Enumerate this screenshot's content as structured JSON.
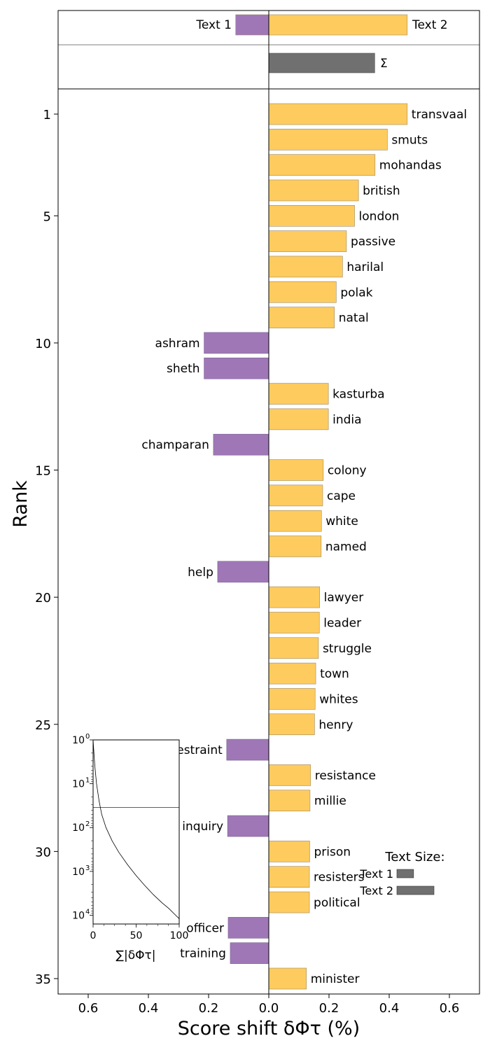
{
  "chart_data": [
    {
      "type": "bar",
      "orientation": "horizontal",
      "xlabel": "Score shift δΦτ (%)",
      "ylabel": "Rank",
      "xlim": [
        -0.7,
        0.7
      ],
      "xticks": [
        -0.6,
        -0.4,
        -0.2,
        0.0,
        0.2,
        0.4,
        0.6
      ],
      "xtick_labels": [
        "0.6",
        "0.4",
        "0.2",
        "0.0",
        "0.2",
        "0.4",
        "0.6"
      ],
      "yticks": [
        1,
        5,
        10,
        15,
        20,
        25,
        30,
        35
      ],
      "ytick_labels": [
        "1",
        "5",
        "10",
        "15",
        "20",
        "25",
        "30",
        "35"
      ],
      "header": {
        "text1_label": "Text 1",
        "text2_label": "Text 2",
        "text1_value": -0.11,
        "text2_value": 0.46,
        "sum_label": "Σ",
        "sum_value": 0.352
      },
      "colors": {
        "text1": "#9f77b7",
        "text2": "#fecb5e",
        "sum": "#707070",
        "bar_edge": "#9b8a6a"
      },
      "bars": [
        {
          "rank": 1,
          "word": "transvaal",
          "value": 0.46
        },
        {
          "rank": 2,
          "word": "smuts",
          "value": 0.394
        },
        {
          "rank": 3,
          "word": "mohandas",
          "value": 0.353
        },
        {
          "rank": 4,
          "word": "british",
          "value": 0.298
        },
        {
          "rank": 5,
          "word": "london",
          "value": 0.285
        },
        {
          "rank": 6,
          "word": "passive",
          "value": 0.258
        },
        {
          "rank": 7,
          "word": "harilal",
          "value": 0.245
        },
        {
          "rank": 8,
          "word": "polak",
          "value": 0.224
        },
        {
          "rank": 9,
          "word": "natal",
          "value": 0.218
        },
        {
          "rank": 10,
          "word": "ashram",
          "value": -0.215
        },
        {
          "rank": 11,
          "word": "sheth",
          "value": -0.215
        },
        {
          "rank": 12,
          "word": "kasturba",
          "value": 0.198
        },
        {
          "rank": 13,
          "word": "india",
          "value": 0.198
        },
        {
          "rank": 14,
          "word": "champaran",
          "value": -0.184
        },
        {
          "rank": 15,
          "word": "colony",
          "value": 0.181
        },
        {
          "rank": 16,
          "word": "cape",
          "value": 0.179
        },
        {
          "rank": 17,
          "word": "white",
          "value": 0.175
        },
        {
          "rank": 18,
          "word": "named",
          "value": 0.174
        },
        {
          "rank": 19,
          "word": "help",
          "value": -0.17
        },
        {
          "rank": 20,
          "word": "lawyer",
          "value": 0.169
        },
        {
          "rank": 21,
          "word": "leader",
          "value": 0.168
        },
        {
          "rank": 22,
          "word": "struggle",
          "value": 0.165
        },
        {
          "rank": 23,
          "word": "town",
          "value": 0.156
        },
        {
          "rank": 24,
          "word": "whites",
          "value": 0.154
        },
        {
          "rank": 25,
          "word": "henry",
          "value": 0.152
        },
        {
          "rank": 26,
          "word": "restraint",
          "value": -0.14
        },
        {
          "rank": 27,
          "word": "resistance",
          "value": 0.139
        },
        {
          "rank": 28,
          "word": "millie",
          "value": 0.137
        },
        {
          "rank": 29,
          "word": "inquiry",
          "value": -0.137
        },
        {
          "rank": 30,
          "word": "prison",
          "value": 0.136
        },
        {
          "rank": 31,
          "word": "resisters",
          "value": 0.135
        },
        {
          "rank": 32,
          "word": "political",
          "value": 0.135
        },
        {
          "rank": 33,
          "word": "officer",
          "value": -0.135
        },
        {
          "rank": 34,
          "word": "training",
          "value": -0.128
        },
        {
          "rank": 35,
          "word": "minister",
          "value": 0.125
        }
      ]
    },
    {
      "type": "line",
      "role": "inset",
      "xlabel": "∑|δΦτ|",
      "xlim": [
        0,
        100
      ],
      "xticks": [
        0,
        50,
        100
      ],
      "xtick_labels": [
        "0",
        "50",
        "100"
      ],
      "yscale": "log",
      "yaxis_inverted": true,
      "yticks": [
        0,
        1,
        2,
        3,
        4
      ],
      "ytick_labels": [
        "10",
        "10",
        "10",
        "10",
        "10"
      ],
      "ytick_exponents": [
        "0",
        "1",
        "2",
        "3",
        "4"
      ],
      "reference_line_rank": 35,
      "points": [
        [
          0,
          1
        ],
        [
          1,
          2
        ],
        [
          2,
          4
        ],
        [
          4,
          10
        ],
        [
          7,
          25
        ],
        [
          10,
          50
        ],
        [
          15,
          100
        ],
        [
          22,
          200
        ],
        [
          30,
          370
        ],
        [
          40,
          700
        ],
        [
          50,
          1250
        ],
        [
          60,
          2100
        ],
        [
          70,
          3400
        ],
        [
          80,
          5200
        ],
        [
          88,
          7000
        ],
        [
          95,
          9600
        ],
        [
          100,
          12000
        ]
      ]
    },
    {
      "type": "bar",
      "role": "text-size-legend",
      "title": "Text Size:",
      "labels": [
        "Text 1",
        "Text 2"
      ],
      "values": [
        0.45,
        1.0
      ]
    }
  ]
}
